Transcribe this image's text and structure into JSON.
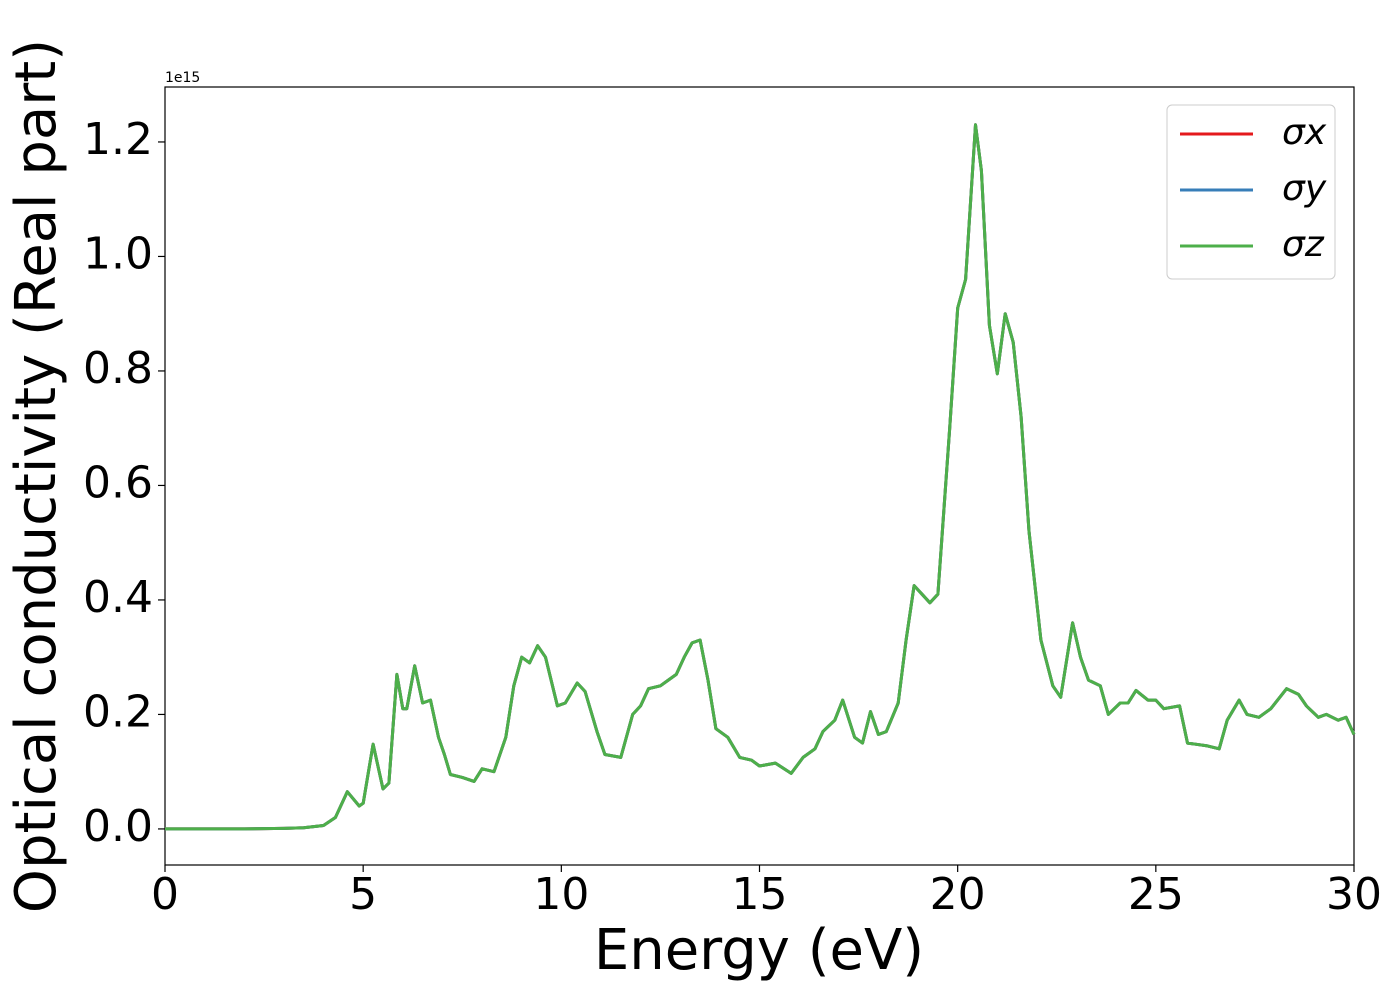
{
  "chart_data": {
    "type": "line",
    "xlabel": "Energy (eV)",
    "ylabel": "Optical conductivity (Real part)",
    "y_offset_label": "1e15",
    "x": [
      0,
      1,
      2,
      3,
      3.5,
      4,
      4.3,
      4.6,
      4.9,
      5.0,
      5.25,
      5.5,
      5.65,
      5.85,
      6.0,
      6.1,
      6.3,
      6.5,
      6.7,
      6.9,
      7.05,
      7.2,
      7.5,
      7.8,
      8.0,
      8.3,
      8.6,
      8.8,
      9.0,
      9.2,
      9.4,
      9.6,
      9.9,
      10.1,
      10.4,
      10.6,
      10.9,
      11.1,
      11.5,
      11.8,
      12.0,
      12.2,
      12.5,
      12.7,
      12.9,
      13.1,
      13.3,
      13.5,
      13.7,
      13.9,
      14.2,
      14.5,
      14.8,
      15.0,
      15.4,
      15.8,
      16.1,
      16.4,
      16.6,
      16.9,
      17.1,
      17.4,
      17.6,
      17.8,
      18.0,
      18.2,
      18.5,
      18.7,
      18.9,
      19.1,
      19.3,
      19.5,
      19.8,
      20.0,
      20.2,
      20.45,
      20.6,
      20.8,
      21.0,
      21.2,
      21.4,
      21.6,
      21.8,
      22.1,
      22.4,
      22.6,
      22.9,
      23.1,
      23.3,
      23.6,
      23.8,
      24.1,
      24.3,
      24.5,
      24.8,
      25.0,
      25.2,
      25.6,
      25.8,
      26.0,
      26.3,
      26.6,
      26.8,
      27.1,
      27.3,
      27.6,
      27.9,
      28.3,
      28.6,
      28.8,
      29.1,
      29.3,
      29.6,
      29.8,
      30
    ],
    "series": [
      {
        "name": "σx",
        "color": "#e41a1c",
        "values": [
          0,
          0,
          0,
          0.001,
          0.002,
          0.006,
          0.02,
          0.065,
          0.04,
          0.045,
          0.148,
          0.07,
          0.08,
          0.27,
          0.21,
          0.21,
          0.285,
          0.22,
          0.225,
          0.16,
          0.13,
          0.095,
          0.09,
          0.083,
          0.105,
          0.1,
          0.16,
          0.25,
          0.3,
          0.29,
          0.32,
          0.3,
          0.215,
          0.22,
          0.255,
          0.24,
          0.17,
          0.13,
          0.125,
          0.2,
          0.215,
          0.245,
          0.25,
          0.26,
          0.27,
          0.3,
          0.325,
          0.33,
          0.26,
          0.175,
          0.16,
          0.125,
          0.12,
          0.11,
          0.115,
          0.097,
          0.125,
          0.14,
          0.17,
          0.19,
          0.225,
          0.16,
          0.15,
          0.205,
          0.165,
          0.17,
          0.22,
          0.33,
          0.425,
          0.41,
          0.395,
          0.41,
          0.7,
          0.91,
          0.96,
          1.23,
          1.15,
          0.88,
          0.795,
          0.9,
          0.85,
          0.72,
          0.52,
          0.33,
          0.25,
          0.23,
          0.36,
          0.3,
          0.26,
          0.25,
          0.2,
          0.22,
          0.22,
          0.242,
          0.225,
          0.225,
          0.21,
          0.215,
          0.15,
          0.148,
          0.145,
          0.14,
          0.19,
          0.225,
          0.2,
          0.195,
          0.21,
          0.245,
          0.235,
          0.215,
          0.195,
          0.2,
          0.19,
          0.195,
          0.165
        ]
      },
      {
        "name": "σy",
        "color": "#377eb8",
        "values": [
          0,
          0,
          0,
          0.001,
          0.002,
          0.006,
          0.02,
          0.065,
          0.04,
          0.045,
          0.148,
          0.07,
          0.08,
          0.27,
          0.21,
          0.21,
          0.285,
          0.22,
          0.225,
          0.16,
          0.13,
          0.095,
          0.09,
          0.083,
          0.105,
          0.1,
          0.16,
          0.25,
          0.3,
          0.29,
          0.32,
          0.3,
          0.215,
          0.22,
          0.255,
          0.24,
          0.17,
          0.13,
          0.125,
          0.2,
          0.215,
          0.245,
          0.25,
          0.26,
          0.27,
          0.3,
          0.325,
          0.33,
          0.26,
          0.175,
          0.16,
          0.125,
          0.12,
          0.11,
          0.115,
          0.097,
          0.125,
          0.14,
          0.17,
          0.19,
          0.225,
          0.16,
          0.15,
          0.205,
          0.165,
          0.17,
          0.22,
          0.33,
          0.425,
          0.41,
          0.395,
          0.41,
          0.7,
          0.91,
          0.96,
          1.23,
          1.15,
          0.88,
          0.795,
          0.9,
          0.85,
          0.72,
          0.52,
          0.33,
          0.25,
          0.23,
          0.36,
          0.3,
          0.26,
          0.25,
          0.2,
          0.22,
          0.22,
          0.242,
          0.225,
          0.225,
          0.21,
          0.215,
          0.15,
          0.148,
          0.145,
          0.14,
          0.19,
          0.225,
          0.2,
          0.195,
          0.21,
          0.245,
          0.235,
          0.215,
          0.195,
          0.2,
          0.19,
          0.195,
          0.165
        ]
      },
      {
        "name": "σz",
        "color": "#4daf4a",
        "values": [
          0,
          0,
          0,
          0.001,
          0.002,
          0.006,
          0.02,
          0.065,
          0.04,
          0.045,
          0.148,
          0.07,
          0.08,
          0.27,
          0.21,
          0.21,
          0.285,
          0.22,
          0.225,
          0.16,
          0.13,
          0.095,
          0.09,
          0.083,
          0.105,
          0.1,
          0.16,
          0.25,
          0.3,
          0.29,
          0.32,
          0.3,
          0.215,
          0.22,
          0.255,
          0.24,
          0.17,
          0.13,
          0.125,
          0.2,
          0.215,
          0.245,
          0.25,
          0.26,
          0.27,
          0.3,
          0.325,
          0.33,
          0.26,
          0.175,
          0.16,
          0.125,
          0.12,
          0.11,
          0.115,
          0.097,
          0.125,
          0.14,
          0.17,
          0.19,
          0.225,
          0.16,
          0.15,
          0.205,
          0.165,
          0.17,
          0.22,
          0.33,
          0.425,
          0.41,
          0.395,
          0.41,
          0.7,
          0.91,
          0.96,
          1.23,
          1.15,
          0.88,
          0.795,
          0.9,
          0.85,
          0.72,
          0.52,
          0.33,
          0.25,
          0.23,
          0.36,
          0.3,
          0.26,
          0.25,
          0.2,
          0.22,
          0.22,
          0.242,
          0.225,
          0.225,
          0.21,
          0.215,
          0.15,
          0.148,
          0.145,
          0.14,
          0.19,
          0.225,
          0.2,
          0.195,
          0.21,
          0.245,
          0.235,
          0.215,
          0.195,
          0.2,
          0.19,
          0.195,
          0.165
        ]
      }
    ],
    "xlim": [
      0,
      30
    ],
    "xticks": [
      0,
      5,
      10,
      15,
      20,
      25,
      30
    ],
    "ylim": [
      -0.063,
      1.296
    ],
    "yticks": [
      {
        "value": 0,
        "label": "0.0"
      },
      0.2,
      0.4,
      0.6,
      0.8,
      {
        "value": 1,
        "label": "1.0"
      },
      1.2
    ],
    "grid": false,
    "legend": "upper right"
  }
}
